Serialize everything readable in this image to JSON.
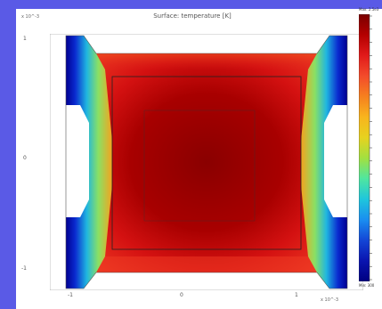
{
  "plot": {
    "title": "Surface: temperature [K]",
    "y_exponent": "x 10^-3",
    "x_exponent": "x 10^-3",
    "y_ticks": [
      "1",
      "0",
      "-1"
    ],
    "x_ticks": [
      "-1",
      "0",
      "1"
    ]
  },
  "colorbar": {
    "max_label": "Max: 2.5e3",
    "min_label": "Min: 300",
    "colors": [
      "#7a0000",
      "#b40000",
      "#e11a1a",
      "#f34b2b",
      "#f6801f",
      "#f8b41d",
      "#e7d21f",
      "#a2e040",
      "#4fe6a0",
      "#1fc6dc",
      "#1a8ef0",
      "#1346d6",
      "#0a14b0",
      "#000080"
    ]
  }
}
